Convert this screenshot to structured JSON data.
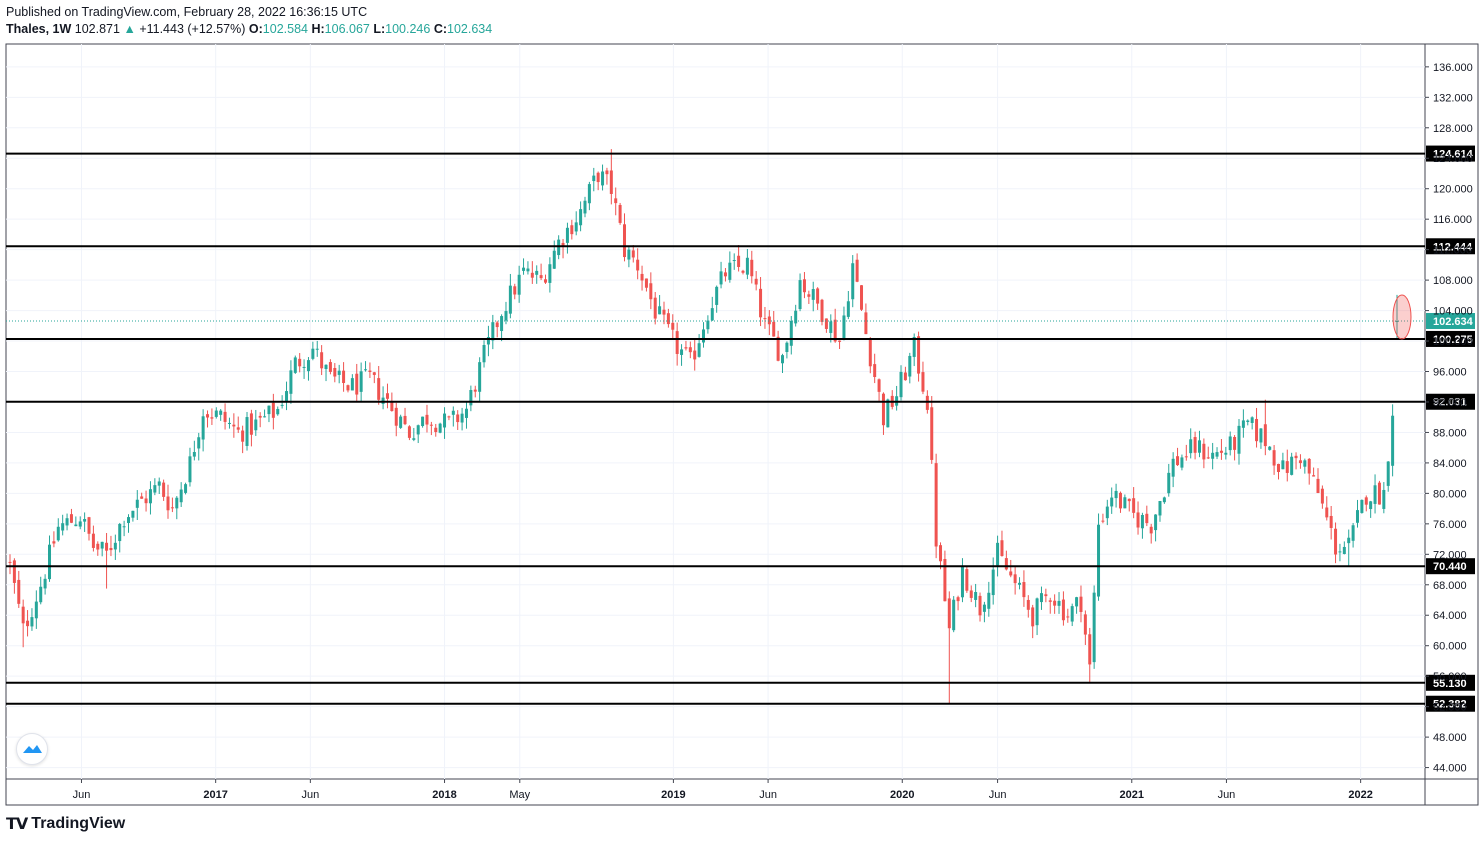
{
  "header": {
    "published": "Published on TradingView.com, February 28, 2022 16:36:15 UTC",
    "symbol": "Thales, 1W",
    "last": "102.871",
    "change_arrow": "▲",
    "change": "+11.443 (+12.57%)",
    "o_label": "O:",
    "o_value": "102.584",
    "h_label": "H:",
    "h_value": "106.067",
    "l_label": "L:",
    "l_value": "100.246",
    "c_label": "C:",
    "c_value": "102.634"
  },
  "footer": {
    "brand": "TradingView",
    "logo_icon": "tradingview-logo-icon"
  },
  "colors": {
    "up": "#26a69a",
    "down": "#ef5350",
    "grid": "#f0f3fa",
    "level": "#000000",
    "price_line": "#26a69a",
    "ellipse": "#ef9a9a"
  },
  "chart_data": {
    "type": "candlestick",
    "interval": "1W",
    "ylim": [
      42.5,
      139
    ],
    "y_ticks": [
      "44.000",
      "48.000",
      "52.000",
      "56.000",
      "60.000",
      "64.000",
      "68.000",
      "72.000",
      "76.000",
      "80.000",
      "84.000",
      "88.000",
      "92.000",
      "96.000",
      "100.000",
      "104.000",
      "108.000",
      "112.000",
      "116.000",
      "120.000",
      "124.000",
      "128.000",
      "132.000",
      "136.000"
    ],
    "x_ticks": [
      {
        "label": "Jun",
        "date": "2016-06"
      },
      {
        "label": "2017",
        "date": "2017-01"
      },
      {
        "label": "Jun",
        "date": "2017-06"
      },
      {
        "label": "2018",
        "date": "2018-01"
      },
      {
        "label": "May",
        "date": "2018-05"
      },
      {
        "label": "2019",
        "date": "2019-01"
      },
      {
        "label": "Jun",
        "date": "2019-06"
      },
      {
        "label": "2020",
        "date": "2020-01"
      },
      {
        "label": "Jun",
        "date": "2020-06"
      },
      {
        "label": "2021",
        "date": "2021-01"
      },
      {
        "label": "Jun",
        "date": "2021-06"
      },
      {
        "label": "2022",
        "date": "2022-01"
      }
    ],
    "levels": [
      124.614,
      112.444,
      100.275,
      92.031,
      70.44,
      55.13,
      52.382
    ],
    "level_labels": [
      "124.614",
      "112.444",
      "100.275",
      "92.031",
      "70.440",
      "55.130",
      "52.382"
    ],
    "current_price": 102.634,
    "current_price_label": "102.634",
    "start_week": "2016-02-08",
    "end_week": "2022-02-28",
    "close_path": [
      [
        "2016-02-08",
        70.5
      ],
      [
        "2016-02-29",
        62
      ],
      [
        "2016-03-28",
        68
      ],
      [
        "2016-04-25",
        75.5
      ],
      [
        "2016-05-30",
        77
      ],
      [
        "2016-06-20",
        73
      ],
      [
        "2016-07-11",
        72
      ],
      [
        "2016-08-08",
        77
      ],
      [
        "2016-09-05",
        79
      ],
      [
        "2016-10-03",
        81
      ],
      [
        "2016-10-24",
        78
      ],
      [
        "2016-11-21",
        84
      ],
      [
        "2016-12-12",
        91
      ],
      [
        "2017-01-09",
        90
      ],
      [
        "2017-02-06",
        88
      ],
      [
        "2017-03-06",
        89
      ],
      [
        "2017-04-10",
        91
      ],
      [
        "2017-05-08",
        97
      ],
      [
        "2017-06-05",
        99
      ],
      [
        "2017-07-03",
        95
      ],
      [
        "2017-08-07",
        94
      ],
      [
        "2017-09-04",
        95
      ],
      [
        "2017-10-02",
        92
      ],
      [
        "2017-11-06",
        88
      ],
      [
        "2017-12-04",
        90
      ],
      [
        "2018-01-08",
        89
      ],
      [
        "2018-02-05",
        91
      ],
      [
        "2018-03-05",
        98
      ],
      [
        "2018-04-02",
        104
      ],
      [
        "2018-05-07",
        109
      ],
      [
        "2018-06-04",
        108
      ],
      [
        "2018-07-02",
        113
      ],
      [
        "2018-08-06",
        117
      ],
      [
        "2018-09-03",
        122
      ],
      [
        "2018-09-24",
        120
      ],
      [
        "2018-10-15",
        112
      ],
      [
        "2018-11-05",
        110
      ],
      [
        "2018-12-03",
        104
      ],
      [
        "2018-12-31",
        100
      ],
      [
        "2019-01-28",
        97
      ],
      [
        "2019-02-25",
        104
      ],
      [
        "2019-03-25",
        109
      ],
      [
        "2019-04-29",
        110
      ],
      [
        "2019-05-27",
        102
      ],
      [
        "2019-06-24",
        98
      ],
      [
        "2019-07-22",
        108
      ],
      [
        "2019-08-26",
        104
      ],
      [
        "2019-09-23",
        100
      ],
      [
        "2019-10-14",
        110
      ],
      [
        "2019-11-04",
        101
      ],
      [
        "2019-12-02",
        90
      ],
      [
        "2019-12-23",
        93
      ],
      [
        "2020-01-20",
        99
      ],
      [
        "2020-02-10",
        92
      ],
      [
        "2020-02-24",
        74
      ],
      [
        "2020-03-16",
        62
      ],
      [
        "2020-04-06",
        70
      ],
      [
        "2020-05-04",
        65
      ],
      [
        "2020-06-01",
        72
      ],
      [
        "2020-06-29",
        68
      ],
      [
        "2020-07-27",
        64
      ],
      [
        "2020-08-24",
        67
      ],
      [
        "2020-09-21",
        64
      ],
      [
        "2020-10-12",
        66
      ],
      [
        "2020-10-26",
        57
      ],
      [
        "2020-11-09",
        76
      ],
      [
        "2020-11-30",
        80
      ],
      [
        "2021-01-04",
        77
      ],
      [
        "2021-02-01",
        76
      ],
      [
        "2021-03-08",
        84
      ],
      [
        "2021-04-12",
        86
      ],
      [
        "2021-05-10",
        85
      ],
      [
        "2021-06-07",
        86
      ],
      [
        "2021-07-05",
        89
      ],
      [
        "2021-08-02",
        87
      ],
      [
        "2021-08-30",
        83
      ],
      [
        "2021-09-27",
        85
      ],
      [
        "2021-10-25",
        80
      ],
      [
        "2021-11-22",
        73
      ],
      [
        "2021-12-13",
        73
      ],
      [
        "2022-01-10",
        80
      ],
      [
        "2022-02-07",
        80
      ],
      [
        "2022-02-21",
        91.2
      ],
      [
        "2022-02-28",
        102.634
      ]
    ],
    "extremes": [
      [
        "2016-02-29",
        59.8
      ],
      [
        "2016-07-11",
        67.5
      ],
      [
        "2018-09-24",
        125.2
      ],
      [
        "2020-03-16",
        52.4
      ],
      [
        "2020-10-26",
        55.1
      ],
      [
        "2021-08-02",
        92.3
      ],
      [
        "2021-12-13",
        70.5
      ],
      [
        "2022-02-28",
        106.067
      ]
    ]
  }
}
